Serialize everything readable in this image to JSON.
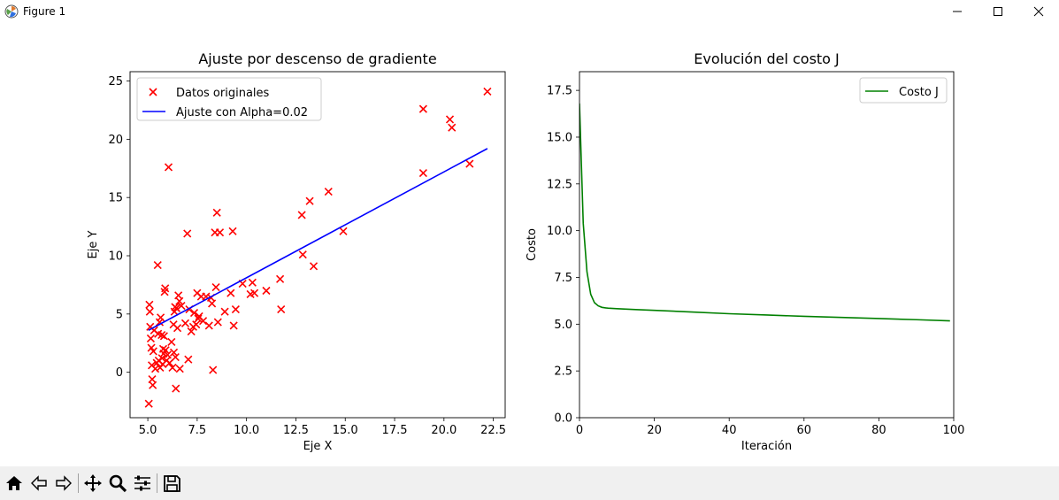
{
  "window": {
    "title": "Figure 1",
    "icon": "matplotlib-icon",
    "controls": [
      "minimize-icon",
      "maximize-icon",
      "close-icon"
    ]
  },
  "toolbar": {
    "buttons": [
      "home-icon",
      "back-icon",
      "forward-icon",
      "pan-icon",
      "zoom-icon",
      "configure-subplots-icon",
      "save-icon"
    ]
  },
  "chart_data": [
    {
      "type": "scatter",
      "title": "Ajuste por descenso de gradiente",
      "xlabel": "Eje X",
      "ylabel": "Eje Y",
      "xlim": [
        4.1,
        23.1
      ],
      "ylim": [
        -3.9,
        25.8
      ],
      "xticks": [
        5.0,
        7.5,
        10.0,
        12.5,
        15.0,
        17.5,
        20.0,
        22.5
      ],
      "xtick_labels": [
        "5.0",
        "7.5",
        "10.0",
        "12.5",
        "15.0",
        "17.5",
        "20.0",
        "22.5"
      ],
      "yticks": [
        0,
        5,
        10,
        15,
        20,
        25
      ],
      "ytick_labels": [
        "0",
        "5",
        "10",
        "15",
        "20",
        "25"
      ],
      "grid": false,
      "legend_position": "upper-left",
      "series": [
        {
          "name": "Datos originales",
          "kind": "scatter",
          "marker": "x",
          "color": "#ff0000",
          "points": [
            [
              5.05,
              -2.7
            ],
            [
              5.08,
              5.8
            ],
            [
              5.1,
              5.2
            ],
            [
              5.12,
              3.9
            ],
            [
              5.15,
              2.9
            ],
            [
              5.18,
              2.1
            ],
            [
              5.2,
              0.6
            ],
            [
              5.22,
              -0.6
            ],
            [
              5.25,
              -1.1
            ],
            [
              5.28,
              1.8
            ],
            [
              5.32,
              3.6
            ],
            [
              5.38,
              0.3
            ],
            [
              5.45,
              0.8
            ],
            [
              5.5,
              9.2
            ],
            [
              5.52,
              3.3
            ],
            [
              5.55,
              1.0
            ],
            [
              5.6,
              4.3
            ],
            [
              5.62,
              0.4
            ],
            [
              5.65,
              4.7
            ],
            [
              5.7,
              3.2
            ],
            [
              5.72,
              1.2
            ],
            [
              5.75,
              0.7
            ],
            [
              5.78,
              2.0
            ],
            [
              5.8,
              1.6
            ],
            [
              5.82,
              3.1
            ],
            [
              5.85,
              6.9
            ],
            [
              5.88,
              7.2
            ],
            [
              5.9,
              1.9
            ],
            [
              5.95,
              1.0
            ],
            [
              6.0,
              1.5
            ],
            [
              6.05,
              17.6
            ],
            [
              6.1,
              0.8
            ],
            [
              6.2,
              2.6
            ],
            [
              6.25,
              0.4
            ],
            [
              6.3,
              4.1
            ],
            [
              6.32,
              1.7
            ],
            [
              6.35,
              5.2
            ],
            [
              6.38,
              5.6
            ],
            [
              6.4,
              1.3
            ],
            [
              6.42,
              -1.4
            ],
            [
              6.45,
              5.5
            ],
            [
              6.5,
              3.8
            ],
            [
              6.55,
              6.6
            ],
            [
              6.6,
              6.1
            ],
            [
              6.62,
              0.3
            ],
            [
              6.7,
              5.7
            ],
            [
              6.9,
              4.2
            ],
            [
              7.0,
              11.9
            ],
            [
              7.05,
              1.1
            ],
            [
              7.1,
              5.4
            ],
            [
              7.2,
              3.5
            ],
            [
              7.3,
              3.9
            ],
            [
              7.35,
              5.1
            ],
            [
              7.45,
              4.1
            ],
            [
              7.5,
              6.8
            ],
            [
              7.55,
              4.6
            ],
            [
              7.6,
              4.8
            ],
            [
              7.7,
              6.5
            ],
            [
              7.8,
              4.4
            ],
            [
              7.95,
              6.5
            ],
            [
              8.1,
              4.0
            ],
            [
              8.2,
              6.4
            ],
            [
              8.25,
              5.9
            ],
            [
              8.3,
              0.2
            ],
            [
              8.4,
              12.0
            ],
            [
              8.45,
              7.3
            ],
            [
              8.5,
              13.7
            ],
            [
              8.55,
              4.3
            ],
            [
              8.65,
              12.0
            ],
            [
              8.9,
              5.2
            ],
            [
              9.2,
              6.8
            ],
            [
              9.3,
              12.1
            ],
            [
              9.35,
              4.0
            ],
            [
              9.45,
              5.4
            ],
            [
              9.8,
              7.6
            ],
            [
              10.2,
              6.7
            ],
            [
              10.3,
              7.7
            ],
            [
              10.4,
              6.8
            ],
            [
              11.0,
              7.0
            ],
            [
              11.7,
              8.0
            ],
            [
              11.75,
              5.4
            ],
            [
              12.8,
              13.5
            ],
            [
              12.85,
              10.1
            ],
            [
              13.2,
              14.7
            ],
            [
              13.4,
              9.1
            ],
            [
              14.15,
              15.5
            ],
            [
              14.9,
              12.1
            ],
            [
              18.95,
              22.6
            ],
            [
              18.95,
              17.1
            ],
            [
              20.3,
              21.7
            ],
            [
              20.4,
              21.0
            ],
            [
              21.3,
              17.9
            ],
            [
              22.2,
              24.1
            ]
          ]
        },
        {
          "name": "Ajuste con Alpha=0.02",
          "kind": "line",
          "color": "#0000ff",
          "points": [
            [
              5.03,
              3.6
            ],
            [
              22.2,
              19.2
            ]
          ]
        }
      ]
    },
    {
      "type": "line",
      "title": "Evolución del costo J",
      "xlabel": "Iteración",
      "ylabel": "Costo",
      "xlim": [
        0,
        100
      ],
      "ylim": [
        0.0,
        18.5
      ],
      "xticks": [
        0,
        20,
        40,
        60,
        80,
        100
      ],
      "xtick_labels": [
        "0",
        "20",
        "40",
        "60",
        "80",
        "100"
      ],
      "yticks": [
        0.0,
        2.5,
        5.0,
        7.5,
        10.0,
        12.5,
        15.0,
        17.5
      ],
      "ytick_labels": [
        "0.0",
        "2.5",
        "5.0",
        "7.5",
        "10.0",
        "12.5",
        "15.0",
        "17.5"
      ],
      "grid": false,
      "legend_position": "upper-right",
      "series": [
        {
          "name": "Costo J",
          "kind": "line",
          "color": "#008000",
          "x": [
            0,
            1,
            2,
            3,
            4,
            5,
            6,
            7,
            8,
            10,
            15,
            20,
            30,
            40,
            50,
            60,
            70,
            80,
            90,
            99
          ],
          "y": [
            16.8,
            10.4,
            7.8,
            6.6,
            6.15,
            5.98,
            5.9,
            5.87,
            5.85,
            5.83,
            5.78,
            5.74,
            5.65,
            5.56,
            5.49,
            5.42,
            5.36,
            5.3,
            5.24,
            5.18
          ]
        }
      ]
    }
  ]
}
